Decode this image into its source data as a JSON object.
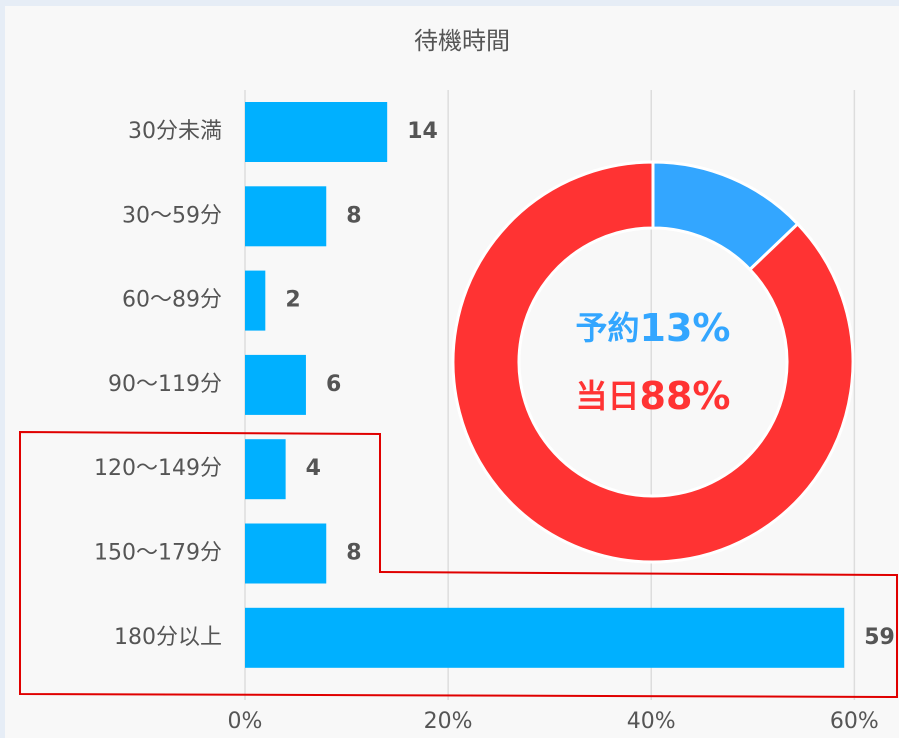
{
  "chart_data": [
    {
      "type": "bar",
      "title": "待機時間",
      "categories": [
        "30分未満",
        "30～59分",
        "60～89分",
        "90～119分",
        "120～149分",
        "150～179分",
        "180分以上"
      ],
      "values": [
        14,
        8,
        2,
        6,
        4,
        8,
        59
      ],
      "color": "#00b0ff",
      "xlim": [
        0,
        64
      ],
      "xticks": [
        {
          "value": 0,
          "label": "0%"
        },
        {
          "value": 20,
          "label": "20%"
        },
        {
          "value": 40,
          "label": "40%"
        },
        {
          "value": 60,
          "label": "60%"
        }
      ],
      "grid": true
    },
    {
      "type": "pie",
      "categories": [
        "予約",
        "当日"
      ],
      "values": [
        13,
        88
      ],
      "value_labels": [
        "13%",
        "88%"
      ],
      "colors": [
        "#33a6ff",
        "#ff3333"
      ]
    }
  ]
}
